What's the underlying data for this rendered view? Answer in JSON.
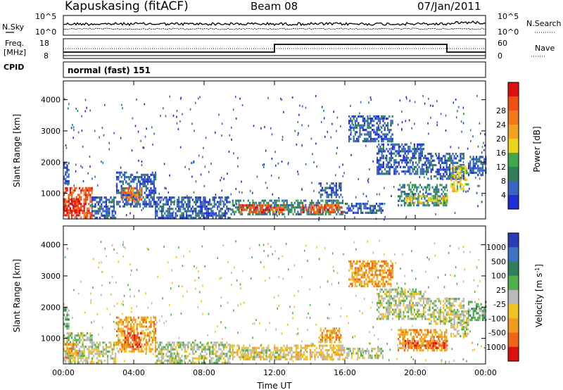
{
  "header": {
    "station": "Kapuskasing (fitACF)",
    "beam": "Beam 08",
    "date": "07/Jan/2011"
  },
  "noise_panel": {
    "left_label": "N.Sky",
    "left_ticks": [
      "10^5",
      "10^0"
    ],
    "right_ticks": [
      "10^5",
      "10^0"
    ],
    "right_label": "N.Search"
  },
  "freq_panel": {
    "left_label_1": "Freq.",
    "left_label_2": "[MHz]",
    "left_ticks": [
      "18",
      "8"
    ],
    "right_ticks": [
      "60",
      "0"
    ],
    "right_label": "Nave"
  },
  "cpid": {
    "label": "CPID",
    "value": "normal (fast) 151"
  },
  "colors": {
    "power_scale": [
      "#1f2dd6",
      "#3a63c8",
      "#2e7f5a",
      "#3fa84a",
      "#e8d51a",
      "#f2a21e",
      "#f07a1a",
      "#f25012",
      "#e01010"
    ],
    "velocity_scale": [
      "#2a3bb8",
      "#3d72c4",
      "#2e7f5a",
      "#52b04a",
      "#b9b9b9",
      "#f2c21e",
      "#f29a1e",
      "#f06414",
      "#e01010"
    ]
  },
  "chart_data": [
    {
      "type": "heatmap",
      "name": "power",
      "xlabel": "",
      "ylabel": "Slant Range [km]",
      "x_ticks": [
        "00:00",
        "04:00",
        "08:00",
        "12:00",
        "16:00",
        "20:00",
        "00:00"
      ],
      "y_ticks": [
        "1000",
        "2000",
        "3000",
        "4000"
      ],
      "ylim": [
        180,
        4600
      ],
      "colorbar": {
        "label": "Power [dB]",
        "ticks": [
          "4",
          "8",
          "12",
          "16",
          "20",
          "24",
          "28"
        ]
      },
      "regions": [
        {
          "t0": 0.0,
          "t1": 1.6,
          "r0": 250,
          "r1": 1200,
          "level": 7
        },
        {
          "t0": 0.0,
          "t1": 1.0,
          "r0": 350,
          "r1": 850,
          "level": 8
        },
        {
          "t0": 0.0,
          "t1": 0.35,
          "r0": 1300,
          "r1": 2000,
          "level": 1
        },
        {
          "t0": 1.6,
          "t1": 3.0,
          "r0": 250,
          "r1": 900,
          "level": 1
        },
        {
          "t0": 3.0,
          "t1": 5.2,
          "r0": 600,
          "r1": 1700,
          "level": 1
        },
        {
          "t0": 3.3,
          "t1": 4.4,
          "r0": 700,
          "r1": 1200,
          "level": 6
        },
        {
          "t0": 5.2,
          "t1": 9.5,
          "r0": 250,
          "r1": 900,
          "level": 1
        },
        {
          "t0": 9.5,
          "t1": 13.2,
          "r0": 300,
          "r1": 800,
          "level": 2
        },
        {
          "t0": 10.0,
          "t1": 12.6,
          "r0": 380,
          "r1": 650,
          "level": 7
        },
        {
          "t0": 13.2,
          "t1": 16.0,
          "r0": 300,
          "r1": 800,
          "level": 2
        },
        {
          "t0": 13.5,
          "t1": 15.8,
          "r0": 420,
          "r1": 650,
          "level": 7
        },
        {
          "t0": 14.5,
          "t1": 15.8,
          "r0": 850,
          "r1": 1350,
          "level": 1
        },
        {
          "t0": 16.0,
          "t1": 18.2,
          "r0": 350,
          "r1": 700,
          "level": 1
        },
        {
          "t0": 16.2,
          "t1": 18.7,
          "r0": 2700,
          "r1": 3500,
          "level": 1
        },
        {
          "t0": 17.8,
          "t1": 20.6,
          "r0": 1600,
          "r1": 2600,
          "level": 1
        },
        {
          "t0": 20.6,
          "t1": 22.8,
          "r0": 1500,
          "r1": 2300,
          "level": 1
        },
        {
          "t0": 22.0,
          "t1": 23.0,
          "r0": 1100,
          "r1": 1900,
          "level": 4
        },
        {
          "t0": 19.0,
          "t1": 21.8,
          "r0": 600,
          "r1": 1300,
          "level": 2
        },
        {
          "t0": 19.4,
          "t1": 21.8,
          "r0": 680,
          "r1": 950,
          "level": 4
        },
        {
          "t0": 23.0,
          "t1": 24.0,
          "r0": 1600,
          "r1": 2200,
          "level": 1
        }
      ]
    },
    {
      "type": "heatmap",
      "name": "velocity",
      "xlabel": "Time UT",
      "ylabel": "Slant Range [km]",
      "x_ticks": [
        "00:00",
        "04:00",
        "08:00",
        "12:00",
        "16:00",
        "20:00",
        "00:00"
      ],
      "y_ticks": [
        "1000",
        "2000",
        "3000",
        "4000"
      ],
      "ylim": [
        180,
        4600
      ],
      "colorbar": {
        "label": "Velocity [m s",
        "label_sup": "-1",
        "label_end": "]",
        "ticks": [
          "1000",
          "500",
          "100",
          "25",
          "-25",
          "-100",
          "-500",
          "-1000"
        ]
      },
      "regions": [
        {
          "t0": 0.0,
          "t1": 1.6,
          "r0": 250,
          "r1": 1200,
          "level": 4
        },
        {
          "t0": 0.0,
          "t1": 0.8,
          "r0": 350,
          "r1": 850,
          "level": 6
        },
        {
          "t0": 0.0,
          "t1": 0.35,
          "r0": 1300,
          "r1": 2000,
          "level": 3
        },
        {
          "t0": 1.6,
          "t1": 3.0,
          "r0": 250,
          "r1": 900,
          "level": 4
        },
        {
          "t0": 3.0,
          "t1": 5.2,
          "r0": 600,
          "r1": 1700,
          "level": 6
        },
        {
          "t0": 3.3,
          "t1": 4.4,
          "r0": 700,
          "r1": 1200,
          "level": 7
        },
        {
          "t0": 5.2,
          "t1": 9.5,
          "r0": 250,
          "r1": 900,
          "level": 4
        },
        {
          "t0": 9.5,
          "t1": 13.2,
          "r0": 300,
          "r1": 800,
          "level": 5
        },
        {
          "t0": 10.0,
          "t1": 12.6,
          "r0": 380,
          "r1": 650,
          "level": 4
        },
        {
          "t0": 13.2,
          "t1": 16.0,
          "r0": 300,
          "r1": 800,
          "level": 5
        },
        {
          "t0": 14.5,
          "t1": 15.8,
          "r0": 850,
          "r1": 1350,
          "level": 6
        },
        {
          "t0": 16.0,
          "t1": 18.2,
          "r0": 350,
          "r1": 700,
          "level": 4
        },
        {
          "t0": 16.2,
          "t1": 18.7,
          "r0": 2700,
          "r1": 3500,
          "level": 6
        },
        {
          "t0": 17.8,
          "t1": 20.6,
          "r0": 1600,
          "r1": 2600,
          "level": 4
        },
        {
          "t0": 20.6,
          "t1": 22.8,
          "r0": 1500,
          "r1": 2300,
          "level": 4
        },
        {
          "t0": 22.0,
          "t1": 23.0,
          "r0": 1100,
          "r1": 1900,
          "level": 4
        },
        {
          "t0": 19.0,
          "t1": 21.8,
          "r0": 600,
          "r1": 1300,
          "level": 6
        },
        {
          "t0": 19.4,
          "t1": 21.8,
          "r0": 680,
          "r1": 950,
          "level": 7
        },
        {
          "t0": 23.0,
          "t1": 24.0,
          "r0": 1600,
          "r1": 2200,
          "level": 3
        }
      ]
    }
  ]
}
